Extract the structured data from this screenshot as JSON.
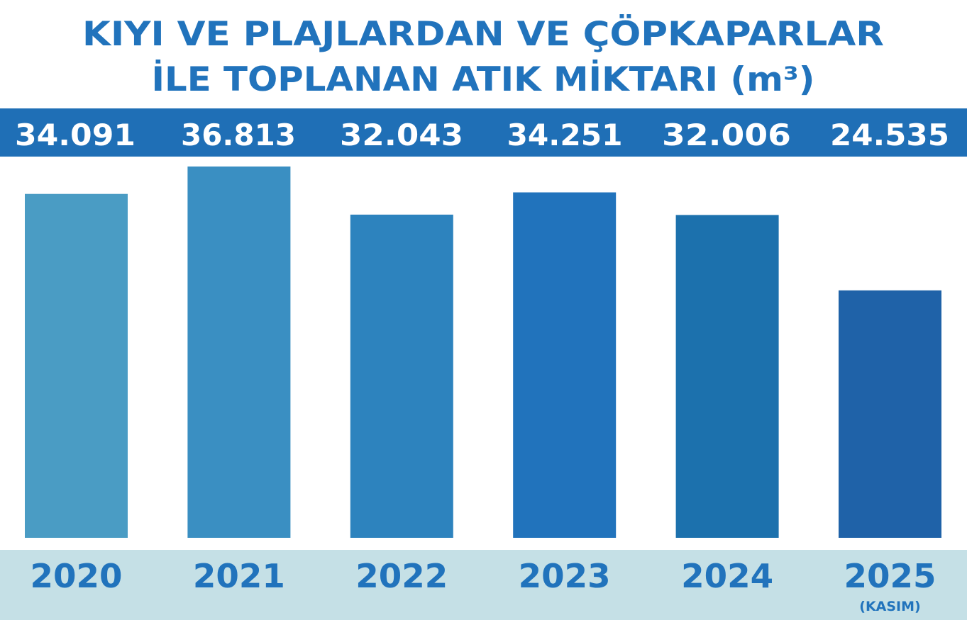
{
  "chart_data": {
    "type": "bar",
    "title_lines": [
      "KIYI VE PLAJLARDAN VE ÇÖPKAPARLAR",
      "İLE TOPLANAN ATIK MİKTARI (m³)"
    ],
    "categories": [
      "2020",
      "2021",
      "2022",
      "2023",
      "2024",
      "2025"
    ],
    "category_notes": [
      "",
      "",
      "",
      "",
      "",
      "(KASIM)"
    ],
    "values": [
      34091,
      36813,
      32043,
      34251,
      32006,
      24535
    ],
    "value_labels": [
      "34.091",
      "36.813",
      "32.043",
      "34.251",
      "32.006",
      "24.535"
    ],
    "xlabel": "",
    "ylabel": "",
    "grid": false,
    "legend": "none",
    "ylim": [
      0,
      36813
    ],
    "bar_colors": [
      "#4a9cc4",
      "#3a8fc2",
      "#2d83be",
      "#2173bc",
      "#1c71ad",
      "#1f62a8"
    ],
    "title_color": "#2173bc",
    "value_band_color": "#1f6fb6",
    "year_band_color": "#c5e0e6",
    "year_text_color": "#2173bc"
  }
}
